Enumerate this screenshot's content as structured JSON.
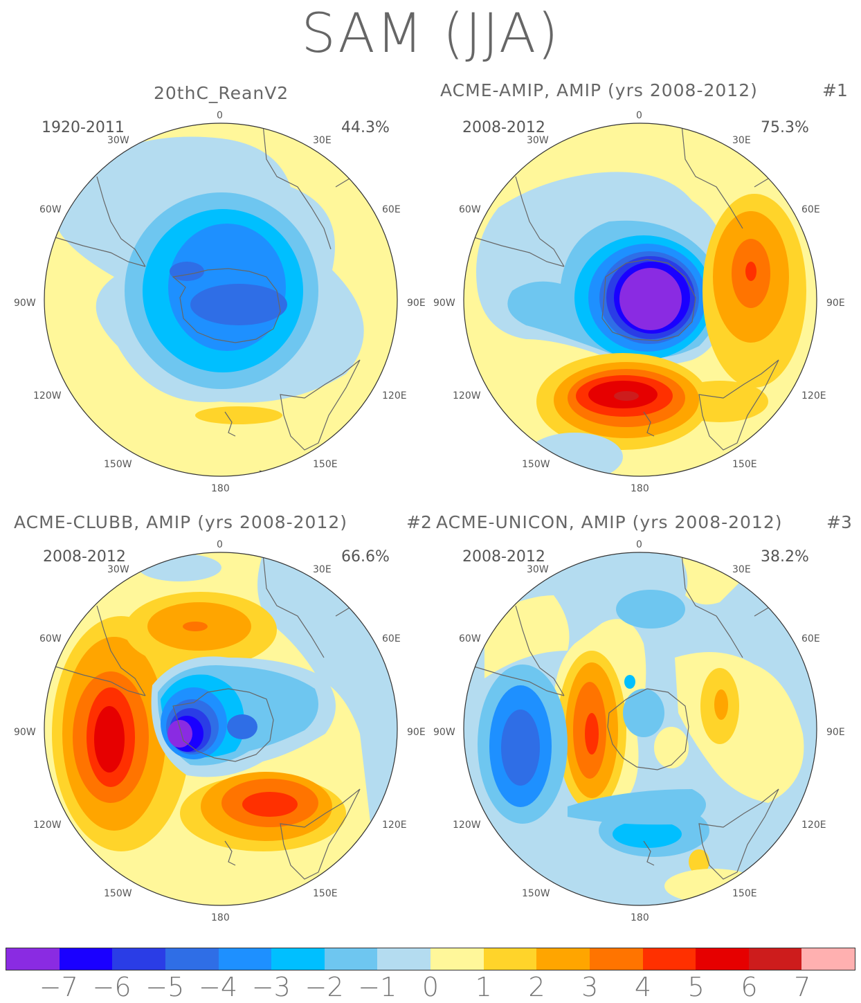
{
  "title": "SAM (JJA)",
  "panels": [
    {
      "title": "20thC_ReanV2",
      "tag": "",
      "period": "1920-2011",
      "variance": "44.3%"
    },
    {
      "title": "ACME-AMIP, AMIP (yrs 2008-2012)",
      "tag": "#1",
      "period": "2008-2012",
      "variance": "75.3%"
    },
    {
      "title": "ACME-CLUBB, AMIP (yrs 2008-2012)",
      "tag": "#2",
      "period": "2008-2012",
      "variance": "66.6%"
    },
    {
      "title": "ACME-UNICON, AMIP (yrs 2008-2012)",
      "tag": "#3",
      "period": "2008-2012",
      "variance": "38.2%"
    }
  ],
  "longitude_labels": [
    "0",
    "30E",
    "60E",
    "90E",
    "120E",
    "150E",
    "180",
    "150W",
    "120W",
    "90W",
    "60W",
    "30W"
  ],
  "colorbar": {
    "colors": [
      "#8a2be2",
      "#1a00ff",
      "#2a3de6",
      "#2f6ee6",
      "#1e90ff",
      "#00bfff",
      "#6ec6f0",
      "#b4dcf0",
      "#fff79a",
      "#ffd42a",
      "#ffa500",
      "#ff7400",
      "#ff3000",
      "#e60000",
      "#cd1c1c",
      "#ffb0b0"
    ],
    "tick_labels": [
      "-7",
      "-6",
      "-5",
      "-4",
      "-3",
      "-2",
      "-1",
      "0",
      "1",
      "2",
      "3",
      "4",
      "5",
      "6",
      "7"
    ]
  }
}
